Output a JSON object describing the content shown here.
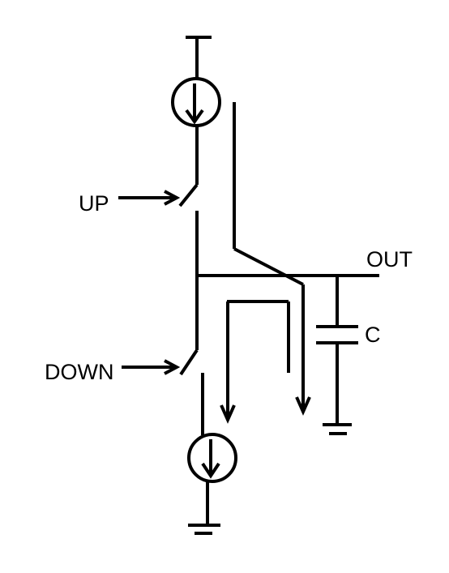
{
  "labels": {
    "up": "UP",
    "down": "DOWN",
    "out": "OUT",
    "capacitor": "C"
  },
  "colors": {
    "ink": "#000000",
    "background": "#ffffff"
  }
}
